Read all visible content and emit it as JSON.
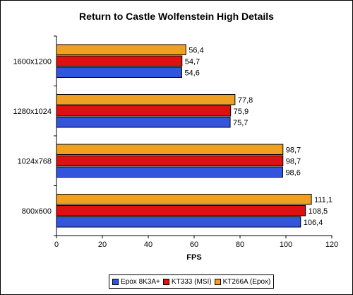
{
  "chart_data": {
    "type": "bar",
    "orientation": "horizontal",
    "title": "Return to Castle Wolfenstein High Details",
    "xlabel": "FPS",
    "ylabel": "",
    "xlim": [
      0,
      120
    ],
    "x_ticks": [
      "0",
      "20",
      "40",
      "60",
      "80",
      "100",
      "120"
    ],
    "categories": [
      "1600x1200",
      "1280x1024",
      "1024x768",
      "800x600"
    ],
    "series": [
      {
        "name": "Epox 8K3A+",
        "color": "#3355dd",
        "values": [
          54.6,
          75.7,
          98.6,
          106.4
        ],
        "labels": [
          "54,6",
          "75,7",
          "98,6",
          "106,4"
        ]
      },
      {
        "name": "KT333 (MSI)",
        "color": "#dd1111",
        "values": [
          54.7,
          75.9,
          98.7,
          108.5
        ],
        "labels": [
          "54,7",
          "75,9",
          "98,7",
          "108,5"
        ]
      },
      {
        "name": "KT266A (Epox)",
        "color": "#f0a020",
        "values": [
          56.4,
          77.8,
          98.7,
          111.1
        ],
        "labels": [
          "56,4",
          "77,8",
          "98,7",
          "111,1"
        ]
      }
    ],
    "grid": false,
    "legend_position": "bottom"
  }
}
